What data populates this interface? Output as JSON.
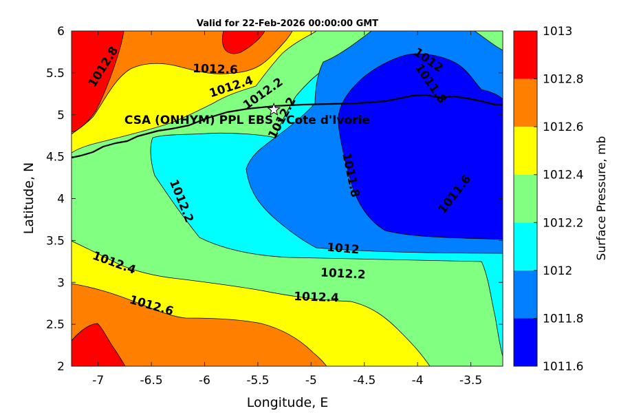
{
  "chart_data": {
    "type": "contour",
    "title": "Valid for 22-Feb-2026 00:00:00 GMT",
    "xlabel": "Longitude, E",
    "ylabel": "Latitude, N",
    "xlim": [
      -7.25,
      -3.2
    ],
    "ylim": [
      2,
      6
    ],
    "xticks": [
      -7,
      -6.5,
      -6,
      -5.5,
      -5,
      -4.5,
      -4,
      -3.5
    ],
    "yticks": [
      2,
      2.5,
      3,
      3.5,
      4,
      4.5,
      5,
      5.5,
      6
    ],
    "xtick_labels": [
      "-7",
      "-6.5",
      "-6",
      "-5.5",
      "-5",
      "-4.5",
      "-4",
      "-3.5"
    ],
    "ytick_labels": [
      "2",
      "2.5",
      "3",
      "3.5",
      "4",
      "4.5",
      "5",
      "5.5",
      "6"
    ],
    "grid": false,
    "colorbar": {
      "label": "Surface Pressure, mb",
      "levels": [
        1011.6,
        1011.8,
        1012,
        1012.2,
        1012.4,
        1012.6,
        1012.8,
        1013
      ],
      "tick_labels": [
        "1011.6",
        "1011.8",
        "1012",
        "1012.2",
        "1012.4",
        "1012.6",
        "1012.8",
        "1013"
      ],
      "colors": [
        "#0000ff",
        "#0080ff",
        "#00ffff",
        "#80ff80",
        "#ffff00",
        "#ff8000",
        "#ff0000",
        "#800000"
      ]
    },
    "contour_labels": [
      {
        "text": "1012.8",
        "x": -6.95,
        "y": 5.57,
        "angle": -58
      },
      {
        "text": "1012.6",
        "x": -5.9,
        "y": 5.54,
        "angle": 2
      },
      {
        "text": "1012.4",
        "x": -5.75,
        "y": 5.33,
        "angle": -18
      },
      {
        "text": "1012.2",
        "x": -5.45,
        "y": 5.25,
        "angle": -35
      },
      {
        "text": "1012.2",
        "x": -5.27,
        "y": 4.96,
        "angle": -62
      },
      {
        "text": "1012",
        "x": -3.9,
        "y": 5.65,
        "angle": 35
      },
      {
        "text": "1011.8",
        "x": -3.88,
        "y": 5.37,
        "angle": 55
      },
      {
        "text": "1011.8",
        "x": -4.63,
        "y": 4.28,
        "angle": 78
      },
      {
        "text": "1011.6",
        "x": -3.65,
        "y": 4.05,
        "angle": -52
      },
      {
        "text": "1012.2",
        "x": -6.22,
        "y": 3.97,
        "angle": 68
      },
      {
        "text": "1012",
        "x": -4.7,
        "y": 3.4,
        "angle": 5
      },
      {
        "text": "1012.2",
        "x": -4.7,
        "y": 3.1,
        "angle": 3
      },
      {
        "text": "1012.4",
        "x": -6.85,
        "y": 3.23,
        "angle": 20
      },
      {
        "text": "1012.4",
        "x": -4.95,
        "y": 2.82,
        "angle": 2
      },
      {
        "text": "1012.6",
        "x": -6.5,
        "y": 2.72,
        "angle": 16
      }
    ],
    "annotations": [
      {
        "text": "CSA (ONHYM) PPL EBS  - Cote d'Ivorie",
        "x": -5.6,
        "y": 4.94
      }
    ],
    "marker": {
      "symbol": "star",
      "x": -5.35,
      "y": 5.06
    }
  }
}
